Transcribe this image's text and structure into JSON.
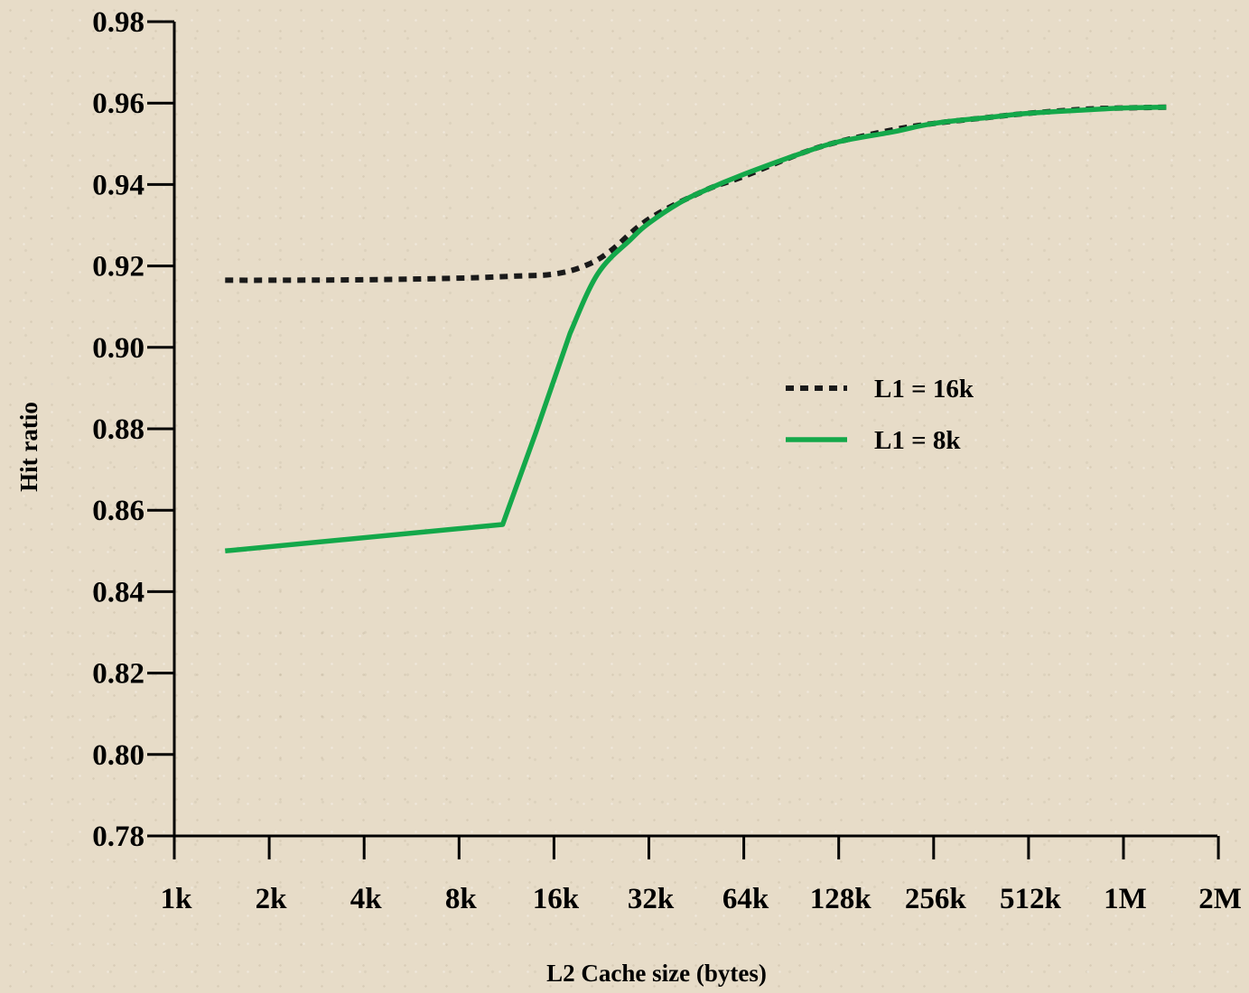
{
  "colors": {
    "background": "#e7dcc8",
    "axis": "#000000",
    "series_l1_16k": "#1a1a1a",
    "series_l1_8k": "#14a84a"
  },
  "chart_data": {
    "type": "line",
    "title": "",
    "xlabel": "L2 Cache size (bytes)",
    "ylabel": "Hit ratio",
    "x_scale": "log2",
    "x_ticks": [
      "1k",
      "2k",
      "4k",
      "8k",
      "16k",
      "32k",
      "64k",
      "128k",
      "256k",
      "512k",
      "1M",
      "2M"
    ],
    "x_tick_values_kb": [
      1,
      2,
      4,
      8,
      16,
      32,
      64,
      128,
      256,
      512,
      1024,
      2048
    ],
    "y_ticks": [
      "0.78",
      "0.80",
      "0.82",
      "0.84",
      "0.86",
      "0.88",
      "0.90",
      "0.92",
      "0.94",
      "0.96",
      "0.98"
    ],
    "ylim": [
      0.78,
      0.98
    ],
    "xlim_kb": [
      1,
      2048
    ],
    "grid": false,
    "legend_position": "center-right",
    "series": [
      {
        "name": "L1 = 16k",
        "style": "dotted",
        "x_kb": [
          1.45,
          2,
          4,
          8,
          12,
          16,
          20,
          24,
          32,
          48,
          64,
          96,
          128,
          192,
          256,
          384,
          512,
          768,
          1024,
          1400
        ],
        "y": [
          0.9165,
          0.9165,
          0.9166,
          0.917,
          0.9175,
          0.918,
          0.92,
          0.9235,
          0.9315,
          0.9385,
          0.942,
          0.9475,
          0.9505,
          0.9535,
          0.955,
          0.9565,
          0.9575,
          0.9585,
          0.9588,
          0.959
        ]
      },
      {
        "name": "L1 = 8k",
        "style": "solid",
        "x_kb": [
          1.45,
          11,
          14,
          18,
          22,
          28,
          32,
          40,
          48,
          64,
          96,
          128,
          192,
          256,
          384,
          512,
          768,
          1024,
          1400
        ],
        "y": [
          0.85,
          0.8565,
          0.879,
          0.9035,
          0.918,
          0.9265,
          0.9305,
          0.9355,
          0.9385,
          0.9425,
          0.9475,
          0.9505,
          0.953,
          0.955,
          0.9565,
          0.9575,
          0.9583,
          0.9588,
          0.959
        ]
      }
    ]
  }
}
